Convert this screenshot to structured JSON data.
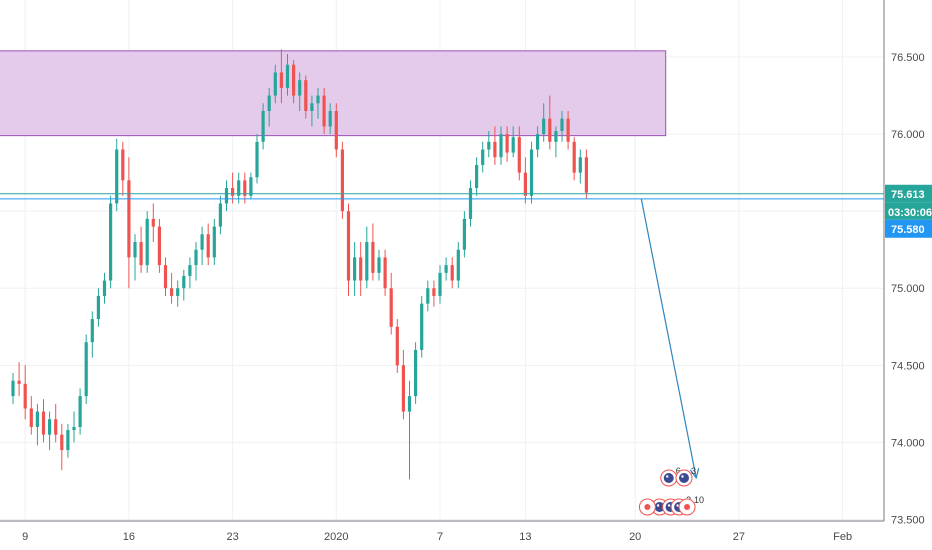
{
  "chart_data": {
    "type": "candlestick",
    "instrument_note": "",
    "y_range": [
      73.49,
      76.87
    ],
    "y_ticks": [
      73.5,
      74.0,
      74.5,
      75.0,
      75.5,
      76.0,
      76.5
    ],
    "y_tick_labels": [
      "73.500",
      "74.000",
      "74.500",
      "75.000",
      "75.500",
      "76.000",
      "76.500"
    ],
    "x_ticks": [
      {
        "label": "9",
        "col": 2
      },
      {
        "label": "16",
        "col": 19
      },
      {
        "label": "23",
        "col": 36
      },
      {
        "label": "2020",
        "col": 53
      },
      {
        "label": "7",
        "col": 70
      },
      {
        "label": "13",
        "col": 84
      },
      {
        "label": "20",
        "col": 102
      },
      {
        "label": "27",
        "col": 119
      },
      {
        "label": "Feb",
        "col": 136
      }
    ],
    "zone": {
      "top": 76.54,
      "bottom": 75.99,
      "col_start": -3,
      "col_end": 107,
      "color": "#e4cbec"
    },
    "levels": [
      {
        "value": 75.613,
        "label": "75.613",
        "color": "#26a69a"
      },
      {
        "value": 75.58,
        "label": "75.580",
        "color": "#2196f3"
      }
    ],
    "countdown": "03:30:06",
    "arrow": {
      "from_col": 103,
      "from_value": 75.58,
      "to_col": 112,
      "to_value": 73.77,
      "color": "#2e86c1"
    },
    "colors": {
      "up": "#26a69a",
      "down": "#ef5350",
      "grid": "#eef0f3",
      "axis": "#787b86"
    },
    "candles": [
      [
        74.3,
        74.45,
        74.25,
        74.4
      ],
      [
        74.4,
        74.52,
        74.3,
        74.38
      ],
      [
        74.38,
        74.5,
        74.15,
        74.22
      ],
      [
        74.22,
        74.3,
        74.05,
        74.1
      ],
      [
        74.1,
        74.25,
        73.98,
        74.2
      ],
      [
        74.2,
        74.28,
        74.0,
        74.05
      ],
      [
        74.05,
        74.2,
        73.95,
        74.15
      ],
      [
        74.15,
        74.25,
        74.0,
        74.05
      ],
      [
        74.05,
        74.12,
        73.82,
        73.95
      ],
      [
        73.95,
        74.12,
        73.9,
        74.08
      ],
      [
        74.08,
        74.2,
        74.0,
        74.1
      ],
      [
        74.1,
        74.35,
        74.05,
        74.3
      ],
      [
        74.3,
        74.7,
        74.25,
        74.65
      ],
      [
        74.65,
        74.85,
        74.55,
        74.8
      ],
      [
        74.8,
        75.0,
        74.75,
        74.95
      ],
      [
        74.95,
        75.1,
        74.9,
        75.05
      ],
      [
        75.05,
        75.6,
        75.0,
        75.55
      ],
      [
        75.55,
        75.97,
        75.5,
        75.9
      ],
      [
        75.9,
        75.95,
        75.6,
        75.7
      ],
      [
        75.7,
        75.85,
        75.0,
        75.2
      ],
      [
        75.2,
        75.35,
        75.05,
        75.3
      ],
      [
        75.3,
        75.4,
        75.1,
        75.15
      ],
      [
        75.15,
        75.5,
        75.1,
        75.45
      ],
      [
        75.45,
        75.55,
        75.3,
        75.4
      ],
      [
        75.4,
        75.45,
        75.1,
        75.15
      ],
      [
        75.15,
        75.2,
        74.95,
        75.0
      ],
      [
        75.0,
        75.1,
        74.9,
        74.95
      ],
      [
        74.95,
        75.05,
        74.88,
        75.0
      ],
      [
        75.0,
        75.12,
        74.92,
        75.08
      ],
      [
        75.08,
        75.2,
        75.0,
        75.15
      ],
      [
        75.15,
        75.3,
        75.05,
        75.25
      ],
      [
        75.25,
        75.4,
        75.15,
        75.35
      ],
      [
        75.35,
        75.42,
        75.15,
        75.2
      ],
      [
        75.2,
        75.45,
        75.15,
        75.4
      ],
      [
        75.4,
        75.6,
        75.35,
        75.55
      ],
      [
        75.55,
        75.7,
        75.5,
        75.65
      ],
      [
        75.65,
        75.75,
        75.55,
        75.6
      ],
      [
        75.6,
        75.75,
        75.55,
        75.7
      ],
      [
        75.7,
        75.75,
        75.55,
        75.6
      ],
      [
        75.6,
        75.75,
        75.58,
        75.72
      ],
      [
        75.72,
        76.0,
        75.68,
        75.95
      ],
      [
        75.95,
        76.2,
        75.9,
        76.15
      ],
      [
        76.15,
        76.3,
        76.05,
        76.25
      ],
      [
        76.25,
        76.45,
        76.2,
        76.4
      ],
      [
        76.4,
        76.55,
        76.2,
        76.3
      ],
      [
        76.3,
        76.52,
        76.25,
        76.45
      ],
      [
        76.45,
        76.48,
        76.2,
        76.25
      ],
      [
        76.25,
        76.4,
        76.15,
        76.35
      ],
      [
        76.35,
        76.38,
        76.1,
        76.15
      ],
      [
        76.15,
        76.25,
        76.05,
        76.2
      ],
      [
        76.2,
        76.3,
        76.1,
        76.25
      ],
      [
        76.25,
        76.3,
        76.0,
        76.05
      ],
      [
        76.05,
        76.2,
        76.0,
        76.15
      ],
      [
        76.15,
        76.2,
        75.85,
        75.9
      ],
      [
        75.9,
        75.95,
        75.45,
        75.5
      ],
      [
        75.5,
        75.55,
        74.95,
        75.05
      ],
      [
        75.05,
        75.3,
        74.95,
        75.2
      ],
      [
        75.2,
        75.3,
        74.95,
        75.05
      ],
      [
        75.05,
        75.4,
        75.0,
        75.3
      ],
      [
        75.3,
        75.42,
        75.05,
        75.1
      ],
      [
        75.1,
        75.25,
        75.05,
        75.2
      ],
      [
        75.2,
        75.25,
        74.95,
        75.0
      ],
      [
        75.0,
        75.1,
        74.7,
        74.75
      ],
      [
        74.75,
        74.8,
        74.45,
        74.5
      ],
      [
        74.5,
        74.6,
        74.15,
        74.2
      ],
      [
        74.2,
        74.4,
        73.76,
        74.3
      ],
      [
        74.3,
        74.65,
        74.25,
        74.6
      ],
      [
        74.6,
        74.95,
        74.55,
        74.9
      ],
      [
        74.9,
        75.05,
        74.85,
        75.0
      ],
      [
        75.0,
        75.05,
        74.88,
        74.95
      ],
      [
        74.95,
        75.15,
        74.9,
        75.1
      ],
      [
        75.1,
        75.2,
        75.05,
        75.15
      ],
      [
        75.15,
        75.2,
        75.0,
        75.05
      ],
      [
        75.05,
        75.3,
        75.0,
        75.25
      ],
      [
        75.25,
        75.5,
        75.2,
        75.45
      ],
      [
        75.45,
        75.7,
        75.4,
        75.65
      ],
      [
        75.65,
        75.85,
        75.6,
        75.8
      ],
      [
        75.8,
        75.95,
        75.75,
        75.9
      ],
      [
        75.9,
        76.02,
        75.85,
        75.95
      ],
      [
        75.95,
        76.05,
        75.8,
        75.85
      ],
      [
        75.85,
        76.05,
        75.8,
        76.0
      ],
      [
        76.0,
        76.05,
        75.82,
        75.88
      ],
      [
        75.88,
        76.05,
        75.85,
        75.98
      ],
      [
        75.98,
        76.05,
        75.7,
        75.75
      ],
      [
        75.75,
        75.85,
        75.55,
        75.6
      ],
      [
        75.6,
        75.95,
        75.55,
        75.9
      ],
      [
        75.9,
        76.05,
        75.85,
        76.0
      ],
      [
        76.0,
        76.2,
        75.95,
        76.1
      ],
      [
        76.1,
        76.25,
        75.9,
        75.95
      ],
      [
        75.95,
        76.05,
        75.85,
        76.02
      ],
      [
        76.02,
        76.15,
        75.95,
        76.1
      ],
      [
        76.1,
        76.15,
        75.9,
        75.95
      ],
      [
        75.95,
        75.98,
        75.7,
        75.75
      ],
      [
        75.75,
        75.9,
        75.68,
        75.85
      ],
      [
        75.85,
        75.9,
        75.58,
        75.62
      ]
    ]
  },
  "events": [
    {
      "col": 106.0,
      "row": 2,
      "kind": "flag"
    },
    {
      "col": 107.5,
      "row": 1,
      "kind": "flag",
      "count": "6"
    },
    {
      "col": 107.8,
      "row": 2,
      "kind": "flag"
    },
    {
      "col": 109.2,
      "row": 2,
      "kind": "flag",
      "count": "2"
    },
    {
      "col": 110.0,
      "row": 1,
      "kind": "flag",
      "count": "3"
    },
    {
      "col": 110.5,
      "row": 2,
      "kind": "dot",
      "count": "10"
    },
    {
      "col": 104.0,
      "row": 2,
      "kind": "dot"
    }
  ]
}
